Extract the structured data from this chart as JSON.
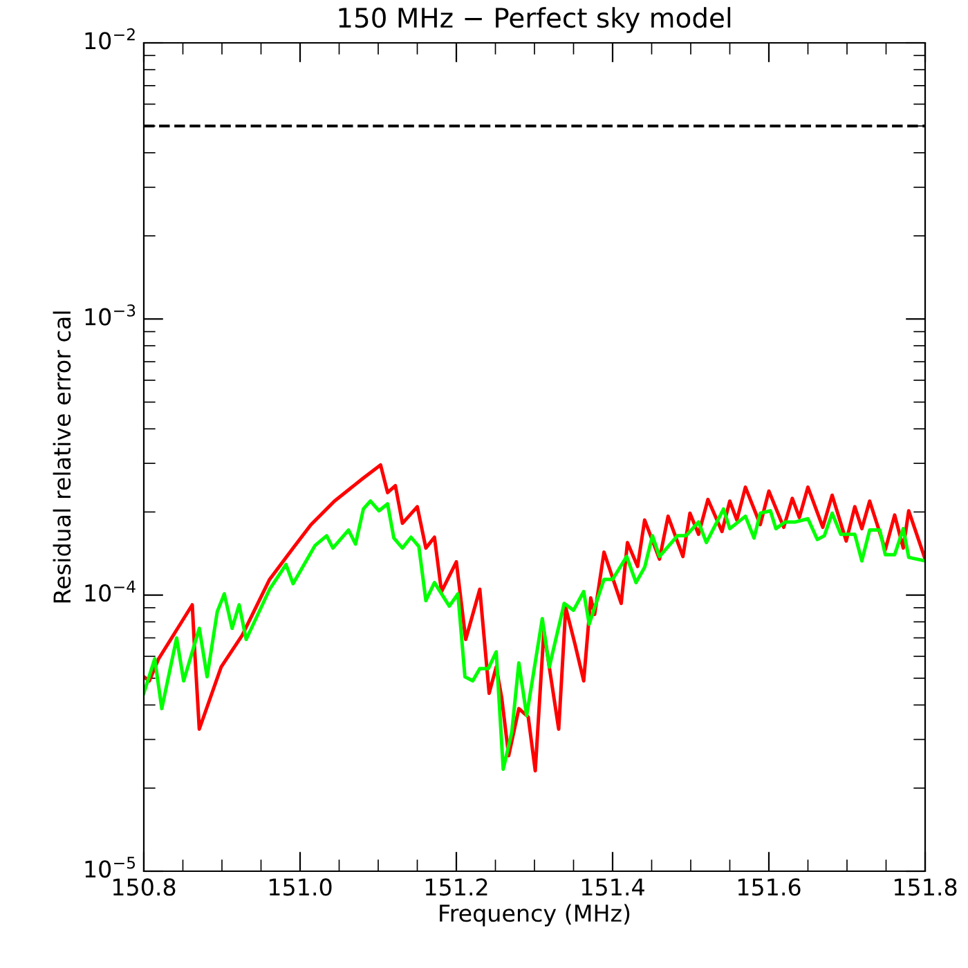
{
  "chart_data": {
    "type": "line",
    "title": "150 MHz − Perfect sky model",
    "xlabel": "Frequency (MHz)",
    "ylabel": "Residual relative error cal",
    "log": "y",
    "grid": false,
    "marker": "none",
    "line_style": "solid",
    "xlim": [
      150.8,
      151.8
    ],
    "xticks": [
      {
        "value": 150.8,
        "label": "150.8"
      },
      {
        "value": 151.0,
        "label": "151.0"
      },
      {
        "value": 151.2,
        "label": "151.2"
      },
      {
        "value": 151.4,
        "label": "151.4"
      },
      {
        "value": 151.6,
        "label": "151.6"
      },
      {
        "value": 151.8,
        "label": "151.8"
      }
    ],
    "ylim": [
      1e-05,
      0.01
    ],
    "yticks": [
      {
        "value": 1e-05,
        "label": "10$^{−5}$"
      },
      {
        "value": 0.0001,
        "label": "10$^{−4}$"
      },
      {
        "value": 0.001,
        "label": "10$^{−3}$"
      },
      {
        "value": 0.01,
        "label": "10$^{−2}$"
      }
    ],
    "ref_lines": [
      {
        "axis": "y",
        "value": 0.005,
        "label": null,
        "color": "#000000",
        "line_style": "dashed"
      }
    ],
    "series": [
      {
        "color": "#ff0000",
        "x": [
          150.8,
          150.807,
          150.819,
          150.862,
          150.865,
          150.871,
          150.899,
          150.926,
          150.961,
          150.991,
          151.014,
          151.044,
          151.08,
          151.103,
          151.112,
          151.122,
          151.131,
          151.15,
          151.161,
          151.172,
          151.181,
          151.2,
          151.212,
          151.23,
          151.242,
          151.251,
          151.258,
          151.267,
          151.28,
          151.292,
          151.301,
          151.312,
          151.331,
          151.34,
          151.352,
          151.363,
          151.372,
          151.377,
          151.389,
          151.411,
          151.419,
          151.432,
          151.441,
          151.46,
          151.471,
          151.49,
          151.499,
          151.51,
          151.522,
          151.54,
          151.55,
          151.559,
          151.57,
          151.589,
          151.6,
          151.619,
          151.63,
          151.639,
          151.65,
          151.669,
          151.681,
          151.699,
          151.71,
          151.719,
          151.729,
          151.749,
          151.761,
          151.772,
          151.779,
          151.8
        ],
        "values": [
          5.06e-05,
          4.89e-05,
          5.88e-05,
          9.22e-05,
          6.38e-05,
          3.27e-05,
          5.49e-05,
          7.16e-05,
          0.000114,
          0.000148,
          0.00018,
          0.000219,
          0.000264,
          0.000296,
          0.000235,
          0.000249,
          0.000182,
          0.000209,
          0.000148,
          0.000162,
          0.000103,
          0.000132,
          6.91e-05,
          0.000105,
          4.41e-05,
          5.49e-05,
          4.26e-05,
          2.62e-05,
          3.88e-05,
          3.62e-05,
          2.31e-05,
          7.41e-05,
          3.27e-05,
          9.01e-05,
          6.61e-05,
          4.89e-05,
          9.77e-05,
          8.51e-05,
          0.000143,
          9.33e-05,
          0.000155,
          0.000127,
          0.000187,
          0.000135,
          0.000193,
          0.000138,
          0.000198,
          0.000166,
          0.000222,
          0.00017,
          0.000219,
          0.000187,
          0.000246,
          0.00018,
          0.000238,
          0.000176,
          0.000224,
          0.000191,
          0.000246,
          0.000176,
          0.00023,
          0.000157,
          0.000209,
          0.000174,
          0.000219,
          0.000146,
          0.000195,
          0.000148,
          0.000202,
          0.000135
        ]
      },
      {
        "color": "#00ff00",
        "x": [
          150.8,
          150.814,
          150.823,
          150.842,
          150.851,
          150.871,
          150.881,
          150.894,
          150.903,
          150.913,
          150.922,
          150.931,
          150.961,
          150.982,
          150.991,
          151.019,
          151.034,
          151.042,
          151.062,
          151.071,
          151.081,
          151.09,
          151.101,
          151.112,
          151.12,
          151.131,
          151.142,
          151.152,
          151.161,
          151.172,
          151.191,
          151.202,
          151.211,
          151.221,
          151.23,
          151.241,
          151.251,
          151.26,
          151.271,
          151.28,
          151.29,
          151.31,
          151.319,
          151.338,
          151.35,
          151.363,
          151.37,
          151.389,
          151.4,
          151.418,
          151.43,
          151.441,
          151.451,
          151.46,
          151.483,
          151.494,
          151.51,
          151.52,
          151.542,
          151.55,
          151.57,
          151.581,
          151.589,
          151.602,
          151.609,
          151.621,
          151.634,
          151.65,
          151.662,
          151.671,
          151.681,
          151.692,
          151.71,
          151.719,
          151.729,
          151.742,
          151.749,
          151.761,
          151.772,
          151.779,
          151.8
        ],
        "values": [
          4.41e-05,
          5.88e-05,
          3.88e-05,
          6.99e-05,
          4.89e-05,
          7.58e-05,
          5.06e-05,
          8.71e-05,
          0.000101,
          7.58e-05,
          9.22e-05,
          6.91e-05,
          0.000105,
          0.000129,
          0.00011,
          0.000151,
          0.000164,
          0.000148,
          0.000172,
          0.000153,
          0.000205,
          0.000219,
          0.000202,
          0.000214,
          0.000161,
          0.000148,
          0.000162,
          0.00015,
          9.55e-05,
          0.000111,
          9.12e-05,
          0.000101,
          5.06e-05,
          4.89e-05,
          5.42e-05,
          5.42e-05,
          6.23e-05,
          2.34e-05,
          3.19e-05,
          5.68e-05,
          3.66e-05,
          8.22e-05,
          5.49e-05,
          9.33e-05,
          8.81e-05,
          0.000103,
          7.85e-05,
          0.000114,
          0.000114,
          0.000138,
          0.000111,
          0.000126,
          0.000164,
          0.000138,
          0.000164,
          0.000164,
          0.000184,
          0.000155,
          0.000205,
          0.000174,
          0.000193,
          0.000161,
          0.000198,
          0.000202,
          0.000174,
          0.000184,
          0.000184,
          0.000189,
          0.000159,
          0.000164,
          0.000198,
          0.000166,
          0.000166,
          0.000133,
          0.000172,
          0.000172,
          0.00014,
          0.00014,
          0.000174,
          0.000137,
          0.000133
        ]
      }
    ]
  }
}
